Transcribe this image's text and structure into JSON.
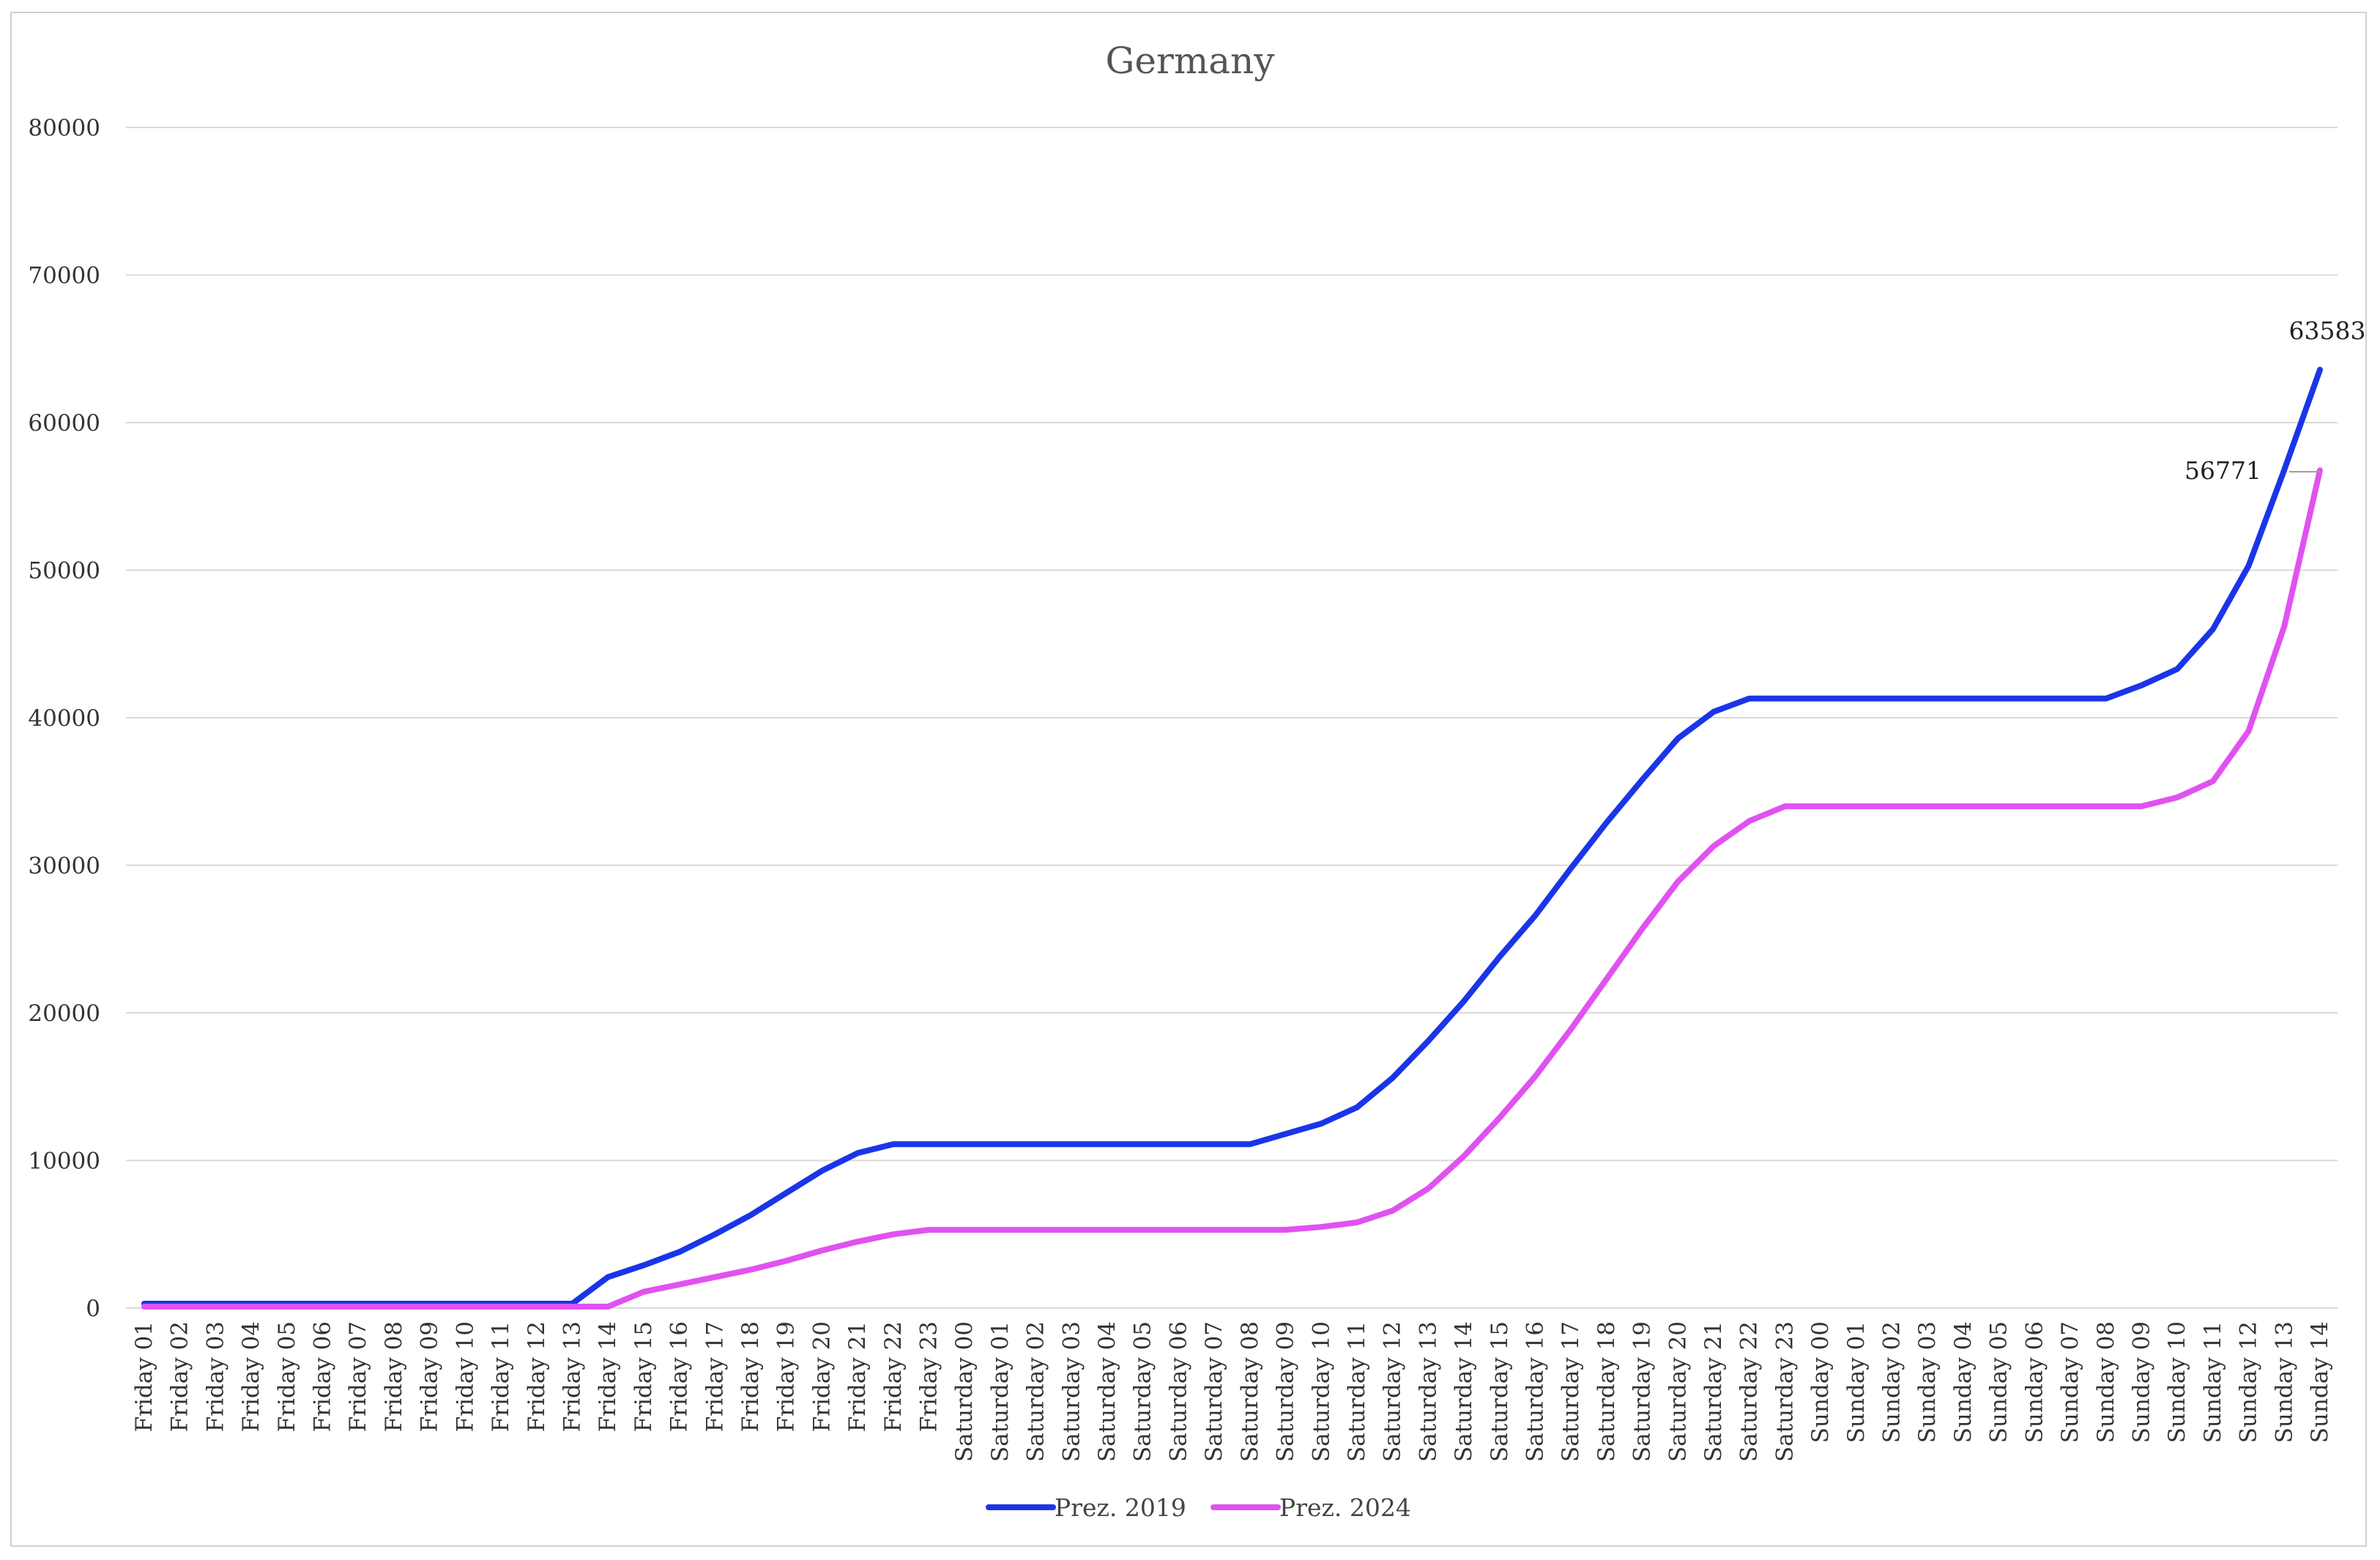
{
  "chart_data": {
    "type": "line",
    "title": "Germany",
    "xlabel": "",
    "ylabel": "",
    "ylim": [
      0,
      80000
    ],
    "yticks": [
      0,
      10000,
      20000,
      30000,
      40000,
      50000,
      60000,
      70000,
      80000
    ],
    "grid": true,
    "legend_position": "bottom",
    "categories": [
      "Friday 01",
      "Friday 02",
      "Friday 03",
      "Friday 04",
      "Friday 05",
      "Friday 06",
      "Friday 07",
      "Friday 08",
      "Friday 09",
      "Friday 10",
      "Friday 11",
      "Friday 12",
      "Friday 13",
      "Friday 14",
      "Friday 15",
      "Friday 16",
      "Friday 17",
      "Friday 18",
      "Friday 19",
      "Friday 20",
      "Friday 21",
      "Friday 22",
      "Friday 23",
      "Saturday 00",
      "Saturday 01",
      "Saturday 02",
      "Saturday 03",
      "Saturday 04",
      "Saturday 05",
      "Saturday 06",
      "Saturday 07",
      "Saturday 08",
      "Saturday 09",
      "Saturday 10",
      "Saturday 11",
      "Saturday 12",
      "Saturday 13",
      "Saturday 14",
      "Saturday 15",
      "Saturday 16",
      "Saturday 17",
      "Saturday 18",
      "Saturday 19",
      "Saturday 20",
      "Saturday 21",
      "Saturday 22",
      "Saturday 23",
      "Sunday 00",
      "Sunday 01",
      "Sunday 02",
      "Sunday 03",
      "Sunday 04",
      "Sunday 05",
      "Sunday 06",
      "Sunday 07",
      "Sunday 08",
      "Sunday 09",
      "Sunday 10",
      "Sunday 11",
      "Sunday 12",
      "Sunday 13",
      "Sunday 14"
    ],
    "series": [
      {
        "name": "Prez. 2019",
        "color": "#1a35e8",
        "values": [
          300,
          300,
          300,
          300,
          300,
          300,
          300,
          300,
          300,
          300,
          300,
          300,
          300,
          2100,
          2900,
          3800,
          5000,
          6300,
          7800,
          9300,
          10500,
          11100,
          11100,
          11100,
          11100,
          11100,
          11100,
          11100,
          11100,
          11100,
          11100,
          11100,
          11800,
          12500,
          13600,
          15600,
          18100,
          20800,
          23800,
          26600,
          29800,
          32900,
          35800,
          38600,
          40400,
          41300,
          41300,
          41300,
          41300,
          41300,
          41300,
          41300,
          41300,
          41300,
          41300,
          41300,
          42200,
          43300,
          46000,
          50300,
          56800,
          63583
        ],
        "data_labels": [
          {
            "index": 61,
            "text": "63583"
          }
        ]
      },
      {
        "name": "Prez. 2024",
        "color": "#e052f0",
        "values": [
          100,
          100,
          100,
          100,
          100,
          100,
          100,
          100,
          100,
          100,
          100,
          100,
          100,
          100,
          1100,
          1600,
          2100,
          2600,
          3200,
          3900,
          4500,
          5000,
          5300,
          5300,
          5300,
          5300,
          5300,
          5300,
          5300,
          5300,
          5300,
          5300,
          5300,
          5500,
          5800,
          6600,
          8100,
          10300,
          12900,
          15700,
          18900,
          22300,
          25700,
          28900,
          31300,
          33000,
          34000,
          34000,
          34000,
          34000,
          34000,
          34000,
          34000,
          34000,
          34000,
          34000,
          34000,
          34600,
          35700,
          39100,
          46200,
          56771
        ],
        "data_labels": [
          {
            "index": 61,
            "text": "56771"
          }
        ]
      }
    ]
  }
}
